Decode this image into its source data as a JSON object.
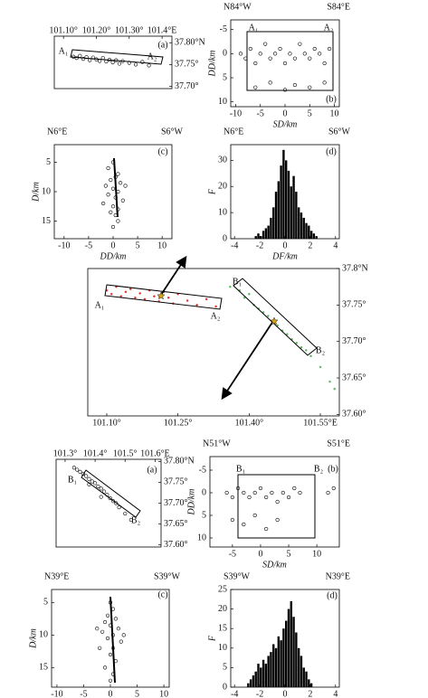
{
  "chart_data": [
    {
      "type": "scatter",
      "panel_label": "(a)",
      "annotations": [
        "A₁",
        "A₂"
      ],
      "xlim": [
        101.072,
        101.43
      ],
      "ylim": [
        37.695,
        37.815
      ],
      "xticks": [
        {
          "value": 101.1,
          "label": "101.10°"
        },
        {
          "value": 101.2,
          "label": "101.20°"
        },
        {
          "value": 101.3,
          "label": "101.30°"
        },
        {
          "value": 101.4,
          "label": "101.4°E"
        }
      ],
      "yticks": [
        {
          "value": 37.8,
          "label": "37.80°N"
        },
        {
          "value": 37.75,
          "label": "37.75°"
        },
        {
          "value": 37.7,
          "label": "37.70°"
        }
      ],
      "series": [
        {
          "color": "#000000",
          "marker": "open",
          "x": [
            101.13,
            101.14,
            101.15,
            101.16,
            101.17,
            101.18,
            101.19,
            101.2,
            101.21,
            101.22,
            101.23,
            101.24,
            101.25,
            101.26,
            101.27,
            101.28,
            101.3,
            101.32,
            101.34,
            101.36
          ],
          "values": [
            37.768,
            37.765,
            37.77,
            37.763,
            37.767,
            37.76,
            37.766,
            37.762,
            37.758,
            37.765,
            37.757,
            37.761,
            37.755,
            37.76,
            37.752,
            37.758,
            37.754,
            37.75,
            37.756,
            37.748
          ]
        }
      ]
    },
    {
      "type": "scatter",
      "panel_label": "(b)",
      "annotations": [
        "A₁",
        "A₂"
      ],
      "left_label": "N84°W",
      "right_label": "S84°E",
      "xlabel": "SD/km",
      "ylabel": "DD/km",
      "y_inverted": true,
      "xlim": [
        -11,
        11
      ],
      "ylim": [
        -7,
        11
      ],
      "xticks": [
        -10,
        -5,
        0,
        5,
        10
      ],
      "yticks": [
        -5,
        0,
        5,
        10
      ],
      "series": [
        {
          "color": "#000000",
          "marker": "open",
          "x": [
            -9,
            -8,
            -7,
            -6,
            -5,
            -4,
            -3,
            -2,
            -1,
            0,
            1,
            2,
            3,
            4,
            5,
            6,
            7,
            8,
            9,
            -6,
            -3,
            0,
            2,
            5,
            8
          ],
          "values": [
            0,
            1,
            -1,
            2,
            0,
            -2,
            1,
            0,
            -1,
            2,
            0,
            1,
            -2,
            0,
            1,
            -1,
            0,
            2,
            -1,
            7,
            6,
            7.5,
            6.5,
            7,
            6
          ]
        }
      ]
    },
    {
      "type": "scatter",
      "panel_label": "(c)",
      "left_label": "N6°E",
      "right_label": "S6°W",
      "xlabel": "DD/km",
      "ylabel": "D/km",
      "y_inverted": true,
      "xlim": [
        -12,
        12
      ],
      "ylim": [
        2,
        18
      ],
      "xticks": [
        -10,
        -5,
        0,
        5,
        10
      ],
      "yticks": [
        5,
        10,
        15
      ],
      "series": [
        {
          "color": "#000000",
          "marker": "open",
          "x": [
            0,
            -1,
            1,
            0.5,
            -0.5,
            1.5,
            -1.5,
            0,
            1,
            -1,
            0.5,
            2,
            -2,
            0,
            1,
            -0.5,
            0.5,
            1,
            0,
            2.5
          ],
          "values": [
            5,
            6,
            7,
            7.5,
            8,
            8.5,
            9,
            9.5,
            10,
            10.5,
            11,
            11.5,
            12,
            12.5,
            13,
            13.5,
            14,
            15,
            16,
            9
          ]
        }
      ]
    },
    {
      "type": "histogram",
      "panel_label": "(d)",
      "left_label": "N6°E",
      "right_label": "S6°W",
      "xlabel": "DF/km",
      "ylabel": "F",
      "color": "#000000",
      "xlim": [
        -4.3,
        4.3
      ],
      "ylim": [
        0,
        36
      ],
      "xticks": [
        -4,
        -2,
        0,
        2,
        4
      ],
      "yticks": [
        0,
        10,
        20,
        30
      ],
      "bins": [
        -2.4,
        -2.2,
        -2,
        -1.8,
        -1.6,
        -1.4,
        -1.2,
        -1,
        -0.8,
        -0.6,
        -0.4,
        -0.2,
        0,
        0.2,
        0.4,
        0.6,
        0.8,
        1,
        1.2,
        1.4,
        1.6,
        1.8,
        2,
        2.2,
        2.4,
        2.6
      ],
      "values": [
        1,
        2,
        1,
        3,
        4,
        5,
        8,
        12,
        18,
        22,
        28,
        34,
        30,
        26,
        20,
        24,
        18,
        12,
        10,
        8,
        6,
        5,
        3,
        2,
        1
      ]
    },
    {
      "type": "scatter",
      "annotations": [
        "A₁",
        "A₂",
        "B₁",
        "B₂"
      ],
      "xlim": [
        101.06,
        101.59
      ],
      "ylim": [
        37.598,
        37.8
      ],
      "xticks": [
        {
          "value": 101.1,
          "label": "101.10°"
        },
        {
          "value": 101.25,
          "label": "101.25°"
        },
        {
          "value": 101.4,
          "label": "101.40°"
        },
        {
          "value": 101.55,
          "label": "101.55°E"
        }
      ],
      "yticks": [
        {
          "value": 37.8,
          "label": "37.8°N"
        },
        {
          "value": 37.75,
          "label": "37.75°"
        },
        {
          "value": 37.7,
          "label": "37.70°"
        },
        {
          "value": 37.65,
          "label": "37.65°"
        },
        {
          "value": 37.6,
          "label": "37.60°"
        }
      ],
      "series": [
        {
          "color": "#e03030",
          "marker": "dot",
          "x": [
            101.1,
            101.11,
            101.12,
            101.13,
            101.14,
            101.15,
            101.16,
            101.17,
            101.18,
            101.19,
            101.2,
            101.21,
            101.22,
            101.23,
            101.24,
            101.25,
            101.27,
            101.29,
            101.31,
            101.33
          ],
          "values": [
            37.77,
            37.765,
            37.775,
            37.762,
            37.768,
            37.772,
            37.76,
            37.766,
            37.758,
            37.77,
            37.762,
            37.755,
            37.768,
            37.76,
            37.752,
            37.765,
            37.756,
            37.75,
            37.758,
            37.748
          ]
        },
        {
          "color": "#5cb85c",
          "marker": "dot",
          "x": [
            101.36,
            101.38,
            101.39,
            101.4,
            101.41,
            101.42,
            101.43,
            101.44,
            101.45,
            101.46,
            101.47,
            101.48,
            101.49,
            101.5,
            101.51,
            101.52,
            101.53,
            101.55,
            101.57,
            101.58
          ],
          "values": [
            37.775,
            37.77,
            37.76,
            37.765,
            37.75,
            37.745,
            37.74,
            37.735,
            37.728,
            37.722,
            37.715,
            37.71,
            37.703,
            37.698,
            37.692,
            37.688,
            37.68,
            37.665,
            37.645,
            37.635
          ]
        }
      ]
    },
    {
      "type": "scatter",
      "panel_label": "(a)",
      "annotations": [
        "B₁",
        "B₂"
      ],
      "xlim": [
        101.27,
        101.62
      ],
      "ylim": [
        37.595,
        37.805
      ],
      "xticks": [
        {
          "value": 101.3,
          "label": "101.3°"
        },
        {
          "value": 101.4,
          "label": "101.4°"
        },
        {
          "value": 101.5,
          "label": "101.5°"
        },
        {
          "value": 101.6,
          "label": "101.6°E"
        }
      ],
      "yticks": [
        {
          "value": 37.8,
          "label": "37.80°N"
        },
        {
          "value": 37.75,
          "label": "37.75°"
        },
        {
          "value": 37.7,
          "label": "37.70°"
        },
        {
          "value": 37.65,
          "label": "37.65°"
        },
        {
          "value": 37.6,
          "label": "37.60°"
        }
      ],
      "series": [
        {
          "color": "#000000",
          "marker": "open",
          "x": [
            101.33,
            101.34,
            101.35,
            101.36,
            101.37,
            101.38,
            101.39,
            101.4,
            101.41,
            101.42,
            101.43,
            101.44,
            101.45,
            101.46,
            101.47,
            101.48,
            101.5,
            101.52,
            101.38,
            101.42
          ],
          "values": [
            37.785,
            37.78,
            37.775,
            37.77,
            37.765,
            37.758,
            37.752,
            37.748,
            37.74,
            37.735,
            37.728,
            37.72,
            37.712,
            37.705,
            37.7,
            37.69,
            37.675,
            37.66,
            37.745,
            37.715
          ]
        }
      ]
    },
    {
      "type": "scatter",
      "panel_label": "(b)",
      "annotations": [
        "B₁",
        "B₂"
      ],
      "left_label": "N51°W",
      "right_label": "S51°E",
      "xlabel": "SD/km",
      "ylabel": "DD/km",
      "y_inverted": true,
      "xlim": [
        -9,
        14
      ],
      "ylim": [
        -8,
        12
      ],
      "xticks": [
        -5,
        0,
        5,
        10
      ],
      "yticks": [
        -5,
        0,
        5,
        10
      ],
      "series": [
        {
          "color": "#000000",
          "marker": "open",
          "x": [
            -6,
            -5,
            -4,
            -3,
            -2,
            -1,
            0,
            1,
            2,
            3,
            4,
            5,
            6,
            7,
            -5,
            -3,
            -1,
            1,
            3,
            12,
            13
          ],
          "values": [
            0,
            1,
            -1,
            0,
            1,
            0,
            -1,
            1,
            0,
            2,
            0,
            1,
            -1,
            0,
            6,
            7,
            5,
            8,
            6,
            0,
            -1
          ]
        }
      ]
    },
    {
      "type": "scatter",
      "panel_label": "(c)",
      "left_label": "N39°E",
      "right_label": "S39°W",
      "xlabel": "DD/km",
      "ylabel": "D/km",
      "y_inverted": true,
      "xlim": [
        -11,
        11
      ],
      "ylim": [
        3,
        18
      ],
      "xticks": [
        -10,
        -5,
        0,
        5,
        10
      ],
      "yticks": [
        5,
        10,
        15
      ],
      "series": [
        {
          "color": "#000000",
          "marker": "open",
          "x": [
            0,
            0.5,
            -0.5,
            1,
            -1,
            0,
            1.5,
            -1.5,
            0.5,
            -0.5,
            2,
            -2,
            0,
            1,
            -1,
            0.5,
            0,
            2.5,
            -2.5,
            0.5
          ],
          "values": [
            5,
            6,
            7,
            7.5,
            8,
            8.5,
            9,
            9.5,
            10,
            10.5,
            11,
            12,
            13,
            14,
            15,
            16,
            17,
            10,
            9,
            12
          ]
        }
      ]
    },
    {
      "type": "histogram",
      "panel_label": "(d)",
      "left_label": "S39°W",
      "right_label": "N39°E",
      "xlabel": "DF/km",
      "ylabel": "F",
      "color": "#000000",
      "xlim": [
        -4.3,
        4.3
      ],
      "ylim": [
        0,
        25
      ],
      "xticks": [
        -4,
        -2,
        0,
        2,
        4
      ],
      "yticks": [
        0,
        5,
        10,
        15,
        20,
        25
      ],
      "bins": [
        -3,
        -2.8,
        -2.6,
        -2.4,
        -2.2,
        -2,
        -1.8,
        -1.6,
        -1.4,
        -1.2,
        -1,
        -0.8,
        -0.6,
        -0.4,
        -0.2,
        0,
        0.2,
        0.4,
        0.6,
        0.8,
        1,
        1.2,
        1.4,
        1.6,
        1.8,
        2,
        2.2
      ],
      "values": [
        1,
        2,
        3,
        4,
        6,
        5,
        7,
        6,
        8,
        9,
        11,
        10,
        13,
        12,
        15,
        17,
        20,
        22,
        18,
        14,
        10,
        8,
        5,
        4,
        2,
        1
      ]
    }
  ]
}
